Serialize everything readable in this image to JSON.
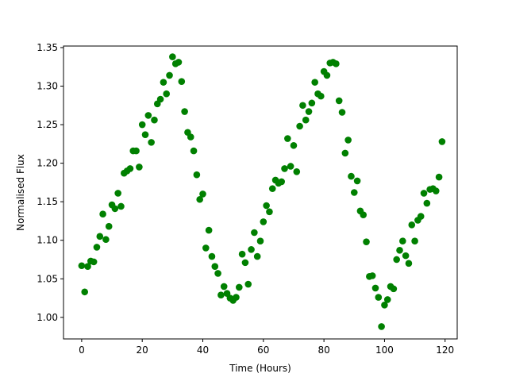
{
  "chart_data": {
    "type": "scatter",
    "title": "",
    "xlabel": "Time (Hours)",
    "ylabel": "Normalised Flux",
    "xlim": [
      -6,
      124
    ],
    "ylim": [
      0.972,
      1.352
    ],
    "xticks": [
      0,
      20,
      40,
      60,
      80,
      100,
      120
    ],
    "yticks": [
      1.0,
      1.05,
      1.1,
      1.15,
      1.2,
      1.25,
      1.3,
      1.35
    ],
    "xtick_labels": [
      "0",
      "20",
      "40",
      "60",
      "80",
      "100",
      "120"
    ],
    "ytick_labels": [
      "1.00",
      "1.05",
      "1.10",
      "1.15",
      "1.20",
      "1.25",
      "1.30",
      "1.35"
    ],
    "grid": false,
    "legend": "none",
    "marker_color": "#008000",
    "series": [
      {
        "x": [
          0,
          1,
          2,
          3,
          4,
          5,
          6,
          7,
          8,
          9,
          10,
          11,
          12,
          13,
          14,
          15,
          16,
          17,
          18,
          19,
          20,
          21,
          22,
          23,
          24,
          25,
          26,
          27,
          28,
          29,
          30,
          31,
          32,
          33,
          34,
          35,
          36,
          37,
          38,
          39,
          40,
          41,
          42,
          43,
          44,
          45,
          46,
          47,
          48,
          49,
          50,
          51,
          52,
          53,
          54,
          55,
          56,
          57,
          58,
          59,
          60,
          61,
          62,
          63,
          64,
          65,
          66,
          67,
          68,
          69,
          70,
          71,
          72,
          73,
          74,
          75,
          76,
          77,
          78,
          79,
          80,
          81,
          82,
          83,
          84,
          85,
          86,
          87,
          88,
          89,
          90,
          91,
          92,
          93,
          94,
          95,
          96,
          97,
          98,
          99,
          100,
          101,
          102,
          103,
          104,
          105,
          106,
          107,
          108,
          109,
          110,
          111,
          112,
          113,
          114,
          115,
          116,
          117,
          118,
          119
        ],
        "y": [
          1.067,
          1.033,
          1.066,
          1.073,
          1.072,
          1.091,
          1.105,
          1.134,
          1.101,
          1.118,
          1.146,
          1.141,
          1.161,
          1.144,
          1.187,
          1.19,
          1.193,
          1.216,
          1.216,
          1.195,
          1.25,
          1.237,
          1.262,
          1.227,
          1.256,
          1.277,
          1.283,
          1.305,
          1.29,
          1.314,
          1.338,
          1.329,
          1.331,
          1.306,
          1.267,
          1.24,
          1.234,
          1.216,
          1.185,
          1.153,
          1.16,
          1.09,
          1.113,
          1.079,
          1.066,
          1.057,
          1.029,
          1.04,
          1.031,
          1.025,
          1.022,
          1.026,
          1.039,
          1.082,
          1.071,
          1.043,
          1.088,
          1.11,
          1.079,
          1.099,
          1.124,
          1.145,
          1.137,
          1.167,
          1.178,
          1.174,
          1.176,
          1.193,
          1.232,
          1.196,
          1.223,
          1.189,
          1.248,
          1.275,
          1.256,
          1.267,
          1.278,
          1.305,
          1.29,
          1.287,
          1.319,
          1.314,
          1.33,
          1.331,
          1.329,
          1.281,
          1.266,
          1.213,
          1.23,
          1.183,
          1.162,
          1.177,
          1.138,
          1.133,
          1.098,
          1.053,
          1.054,
          1.038,
          1.026,
          0.988,
          1.016,
          1.023,
          1.04,
          1.037,
          1.075,
          1.087,
          1.099,
          1.08,
          1.07,
          1.12,
          1.099,
          1.126,
          1.131,
          1.161,
          1.148,
          1.166,
          1.167,
          1.164,
          1.182,
          1.228
        ]
      }
    ]
  }
}
